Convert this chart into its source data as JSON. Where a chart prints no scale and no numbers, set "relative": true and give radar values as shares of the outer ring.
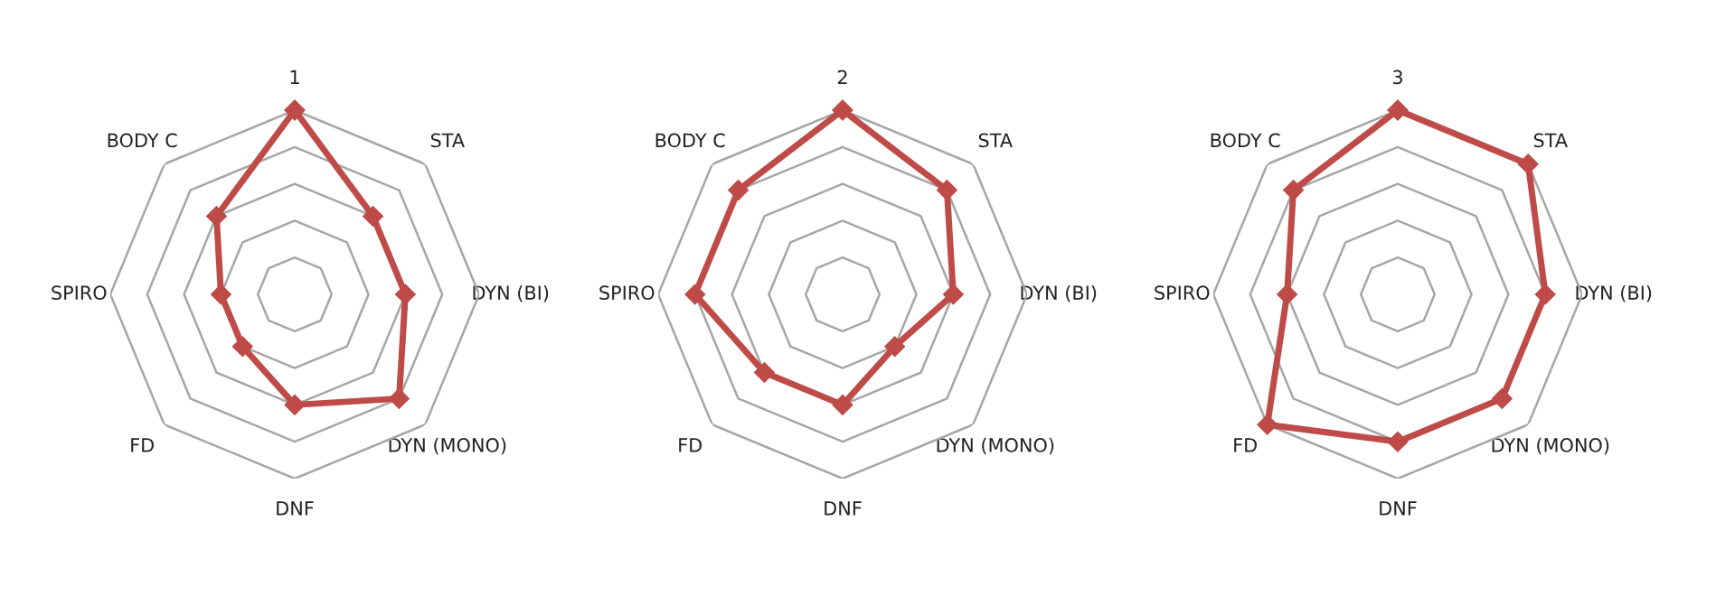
{
  "chart_data": [
    {
      "type": "radar",
      "relative": true,
      "grid": true,
      "marker": "diamond",
      "categories": [
        "1",
        "STA",
        "DYN (BI)",
        "DYN (MONO)",
        "DNF",
        "FD",
        "SPIRO",
        "BODY C"
      ],
      "series": [
        {
          "color": "#be4b48",
          "values": [
            1.0,
            0.6,
            0.6,
            0.8,
            0.6,
            0.4,
            0.4,
            0.6
          ]
        }
      ]
    },
    {
      "type": "radar",
      "relative": true,
      "grid": true,
      "marker": "diamond",
      "categories": [
        "2",
        "STA",
        "DYN (BI)",
        "DYN (MONO)",
        "DNF",
        "FD",
        "SPIRO",
        "BODY C"
      ],
      "series": [
        {
          "color": "#be4b48",
          "values": [
            1.0,
            0.8,
            0.6,
            0.4,
            0.6,
            0.6,
            0.8,
            0.8
          ]
        }
      ]
    },
    {
      "type": "radar",
      "relative": true,
      "grid": true,
      "marker": "diamond",
      "categories": [
        "3",
        "STA",
        "DYN (BI)",
        "DYN (MONO)",
        "DNF",
        "FD",
        "SPIRO",
        "BODY C"
      ],
      "series": [
        {
          "color": "#be4b48",
          "values": [
            1.0,
            1.0,
            0.8,
            0.8,
            0.8,
            1.0,
            0.6,
            0.8
          ]
        }
      ]
    }
  ]
}
